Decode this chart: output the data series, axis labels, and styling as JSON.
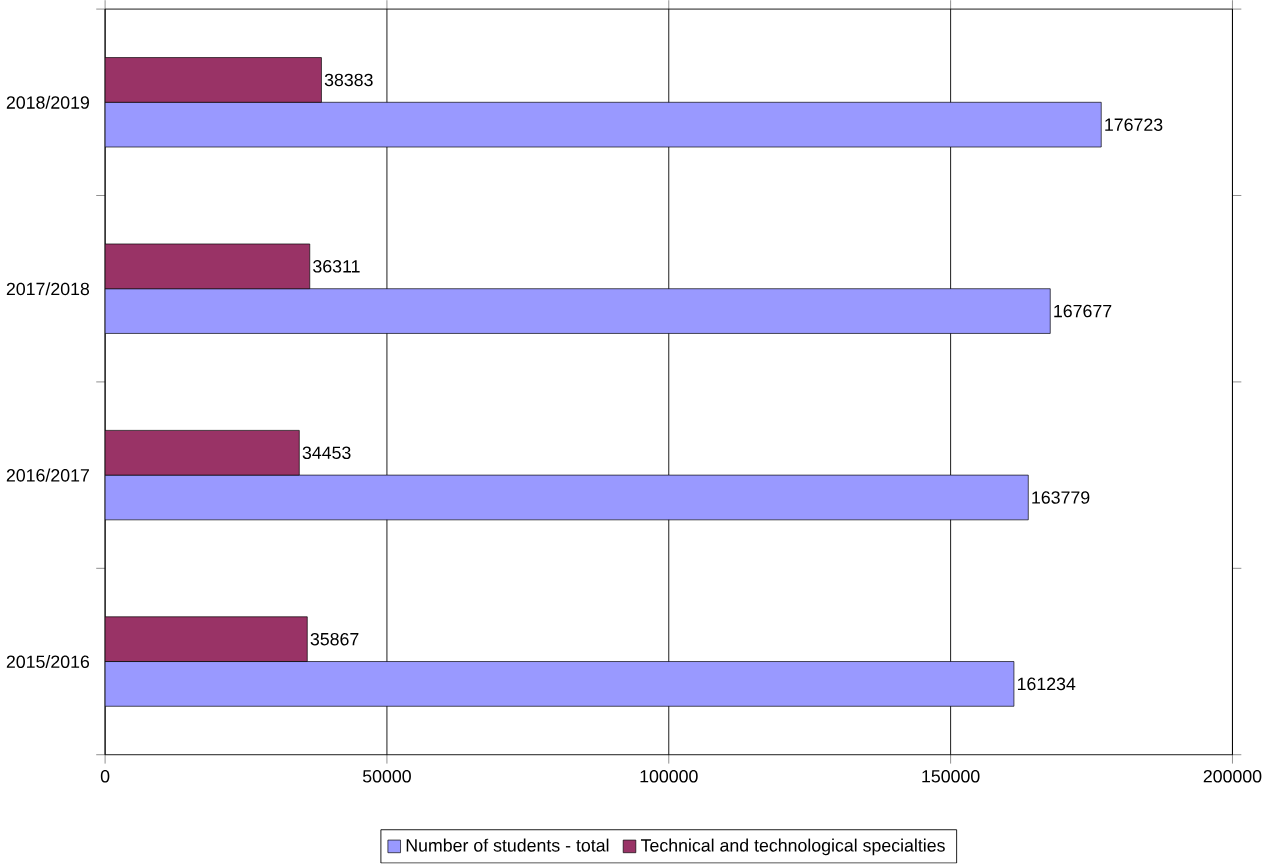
{
  "chart_data": {
    "type": "bar",
    "orientation": "horizontal",
    "categories": [
      "2018/2019",
      "2017/2018",
      "2016/2017",
      "2015/2016"
    ],
    "series": [
      {
        "name": "Number of students - total",
        "color": "#9999ff",
        "values": [
          176723,
          167677,
          163779,
          161234
        ]
      },
      {
        "name": "Technical and technological specialties",
        "color": "#993366",
        "values": [
          38383,
          36311,
          34453,
          35867
        ]
      }
    ],
    "xlim": [
      0,
      200000
    ],
    "xticks": [
      0,
      50000,
      100000,
      150000,
      200000
    ],
    "grid": "x",
    "legend": "bottom",
    "data_labels": true
  }
}
